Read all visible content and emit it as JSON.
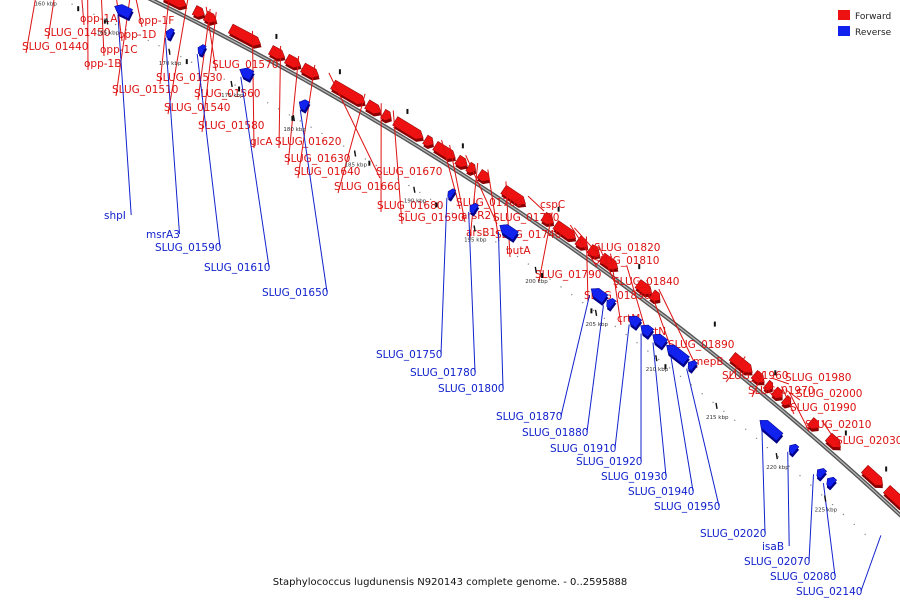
{
  "legend": {
    "forward": {
      "label": "Forward",
      "color": "#ee1111"
    },
    "reverse": {
      "label": "Reverse",
      "color": "#1122ee"
    }
  },
  "caption": "Staphylococcus lugdunensis N920143 complete genome. - 0..2595888",
  "colors": {
    "backbone": "#777777",
    "tick": "#111111",
    "forward_label": "#dd1111",
    "reverse_label": "#1122cc"
  },
  "ticks": [
    "160 kbp",
    "165 kbp",
    "170 kbp",
    "175 kbp",
    "180 kbp",
    "185 kbp",
    "190 kbp",
    "195 kbp",
    "200 kbp",
    "205 kbp",
    "210 kbp",
    "215 kbp",
    "220 kbp",
    "225 kbp"
  ],
  "forward_genes": [
    "SLUG_01440",
    "SLUG_01450",
    "opp-1A",
    "opp-1B",
    "opp-1C",
    "opp-1D",
    "opp-1F",
    "SLUG_01510",
    "SLUG_01530",
    "SLUG_01540",
    "SLUG_01560",
    "SLUG_01570",
    "SLUG_01580",
    "glcA",
    "SLUG_01620",
    "SLUG_01630",
    "SLUG_01640",
    "SLUG_01660",
    "SLUG_01670",
    "SLUG_01680",
    "SLUG_01690",
    "SLUG_01700",
    "arsR2",
    "SLUG_01730",
    "arsB1",
    "SLUG_01740",
    "cspC",
    "butA",
    "SLUG_01790",
    "SLUG_01810",
    "SLUG_01820",
    "SLUG_01830",
    "SLUG_01840",
    "crtM",
    "crtN",
    "SLUG_01890",
    "mepB",
    "SLUG_01960",
    "SLUG_01970",
    "SLUG_01980",
    "SLUG_01990",
    "SLUG_02000",
    "SLUG_02010",
    "SLUG_02030"
  ],
  "reverse_genes": [
    "shpI",
    "msrA3",
    "SLUG_01590",
    "SLUG_01610",
    "SLUG_01650",
    "SLUG_01750",
    "SLUG_01780",
    "SLUG_01800",
    "SLUG_01870",
    "SLUG_01880",
    "SLUG_01910",
    "SLUG_01920",
    "SLUG_01930",
    "SLUG_01940",
    "SLUG_01950",
    "SLUG_02020",
    "isaB",
    "SLUG_02070",
    "SLUG_02080",
    "SLUG_02140"
  ]
}
